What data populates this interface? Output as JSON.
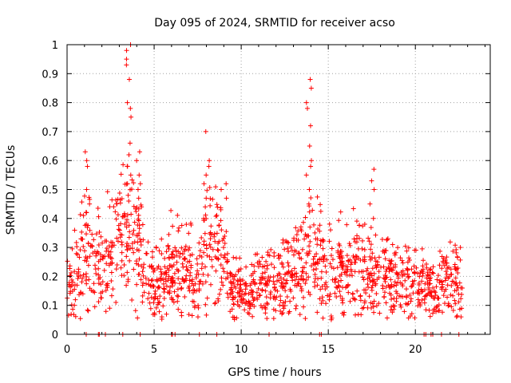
{
  "chart_data": {
    "type": "scatter",
    "title": "Day 095 of 2024, SRMTID for receiver acso",
    "xlabel": "GPS time / hours",
    "ylabel": "SRMTID / TECUs",
    "xlim": [
      0,
      24.3
    ],
    "ylim": [
      0,
      1
    ],
    "x_ticks": [
      "0",
      "5",
      "10",
      "15",
      "20"
    ],
    "x_tick_values": [
      0,
      5,
      10,
      15,
      20
    ],
    "y_ticks": [
      "0",
      "0.1",
      "0.2",
      "0.3",
      "0.4",
      "0.5",
      "0.6",
      "0.7",
      "0.8",
      "0.9",
      "1"
    ],
    "y_tick_values": [
      0,
      0.1,
      0.2,
      0.3,
      0.4,
      0.5,
      0.6,
      0.7,
      0.8,
      0.9,
      1
    ],
    "grid": true,
    "marker": "+",
    "series_color": "#ff0000",
    "time_range_hours": [
      0,
      22.7
    ],
    "envelope": {
      "x": [
        0,
        0.5,
        1.0,
        1.5,
        2.0,
        2.5,
        3.0,
        3.5,
        4.0,
        4.5,
        5.0,
        5.5,
        6.0,
        6.5,
        7.0,
        7.5,
        8.0,
        8.5,
        9.0,
        9.5,
        10.0,
        10.5,
        11.0,
        11.5,
        12.0,
        12.5,
        13.0,
        13.5,
        14.0,
        14.5,
        15.0,
        15.5,
        16.0,
        16.5,
        17.0,
        17.5,
        18.0,
        18.5,
        19.0,
        19.5,
        20.0,
        20.5,
        21.0,
        21.5,
        22.0,
        22.5
      ],
      "mean": [
        0.15,
        0.24,
        0.28,
        0.3,
        0.24,
        0.26,
        0.32,
        0.36,
        0.3,
        0.22,
        0.16,
        0.18,
        0.22,
        0.24,
        0.22,
        0.2,
        0.3,
        0.3,
        0.24,
        0.16,
        0.14,
        0.17,
        0.19,
        0.17,
        0.18,
        0.2,
        0.21,
        0.24,
        0.3,
        0.26,
        0.25,
        0.24,
        0.22,
        0.24,
        0.21,
        0.22,
        0.21,
        0.21,
        0.18,
        0.17,
        0.19,
        0.18,
        0.16,
        0.17,
        0.2,
        0.22
      ],
      "spread": [
        0.05,
        0.08,
        0.1,
        0.1,
        0.08,
        0.09,
        0.11,
        0.12,
        0.1,
        0.08,
        0.06,
        0.07,
        0.08,
        0.08,
        0.08,
        0.07,
        0.1,
        0.1,
        0.08,
        0.06,
        0.05,
        0.06,
        0.07,
        0.06,
        0.06,
        0.07,
        0.08,
        0.09,
        0.1,
        0.09,
        0.09,
        0.08,
        0.08,
        0.09,
        0.08,
        0.08,
        0.07,
        0.07,
        0.06,
        0.06,
        0.07,
        0.06,
        0.05,
        0.06,
        0.07,
        0.08
      ]
    },
    "spikes": [
      {
        "x": 1.2,
        "values": [
          0.63,
          0.6,
          0.58,
          0.5,
          0.45,
          0.42
        ]
      },
      {
        "x": 3.5,
        "values": [
          1.0,
          0.98,
          0.95,
          0.93,
          0.88,
          0.8,
          0.78,
          0.75,
          0.66,
          0.62,
          0.58,
          0.55,
          0.52
        ]
      },
      {
        "x": 4.1,
        "values": [
          0.63,
          0.6,
          0.55,
          0.52,
          0.5,
          0.47,
          0.44
        ]
      },
      {
        "x": 8.0,
        "values": [
          0.7,
          0.6,
          0.58,
          0.55,
          0.52,
          0.47,
          0.44,
          0.4
        ]
      },
      {
        "x": 9.0,
        "values": [
          0.52,
          0.5,
          0.47,
          0.43
        ]
      },
      {
        "x": 13.9,
        "values": [
          0.88,
          0.85,
          0.8,
          0.78,
          0.72,
          0.65,
          0.6,
          0.58,
          0.55,
          0.5,
          0.45
        ]
      },
      {
        "x": 17.5,
        "values": [
          0.57,
          0.53,
          0.5,
          0.45,
          0.4
        ]
      }
    ],
    "zero_points_x": [
      1.1,
      1.8,
      1.85,
      2.2,
      3.2,
      4.2,
      6.0,
      6.05,
      6.2,
      7.6,
      8.6,
      11.6,
      14.5,
      14.6,
      20.5,
      20.6,
      20.9,
      21.0,
      21.5,
      22.5
    ]
  }
}
